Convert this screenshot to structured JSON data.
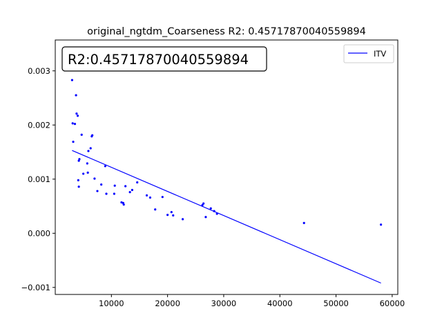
{
  "chart_data": {
    "type": "scatter",
    "title": "original_ngtdm_Coarseness R2: 0.45717870040559894",
    "annotation": "R2:0.45717870040559894",
    "xlabel": "",
    "ylabel": "",
    "xlim": [
      0,
      61000
    ],
    "ylim": [
      -0.00113,
      0.00357
    ],
    "x_ticks": [
      10000,
      20000,
      30000,
      40000,
      50000,
      60000
    ],
    "x_tick_labels": [
      "10000",
      "20000",
      "30000",
      "40000",
      "50000",
      "60000"
    ],
    "y_ticks": [
      -0.001,
      0.0,
      0.001,
      0.002,
      0.003
    ],
    "y_tick_labels": [
      "−0.001",
      "0.000",
      "0.001",
      "0.002",
      "0.003"
    ],
    "legend": {
      "placement": "top-right",
      "entries": [
        "ITV"
      ]
    },
    "grid": false,
    "colors": {
      "points": "#0000ff",
      "line": "#0000ff"
    },
    "series": [
      {
        "kind": "points",
        "points": [
          [
            3000,
            0.00283
          ],
          [
            3100,
            0.00203
          ],
          [
            3200,
            0.00169
          ],
          [
            3500,
            0.00202
          ],
          [
            3700,
            0.00255
          ],
          [
            3800,
            0.00221
          ],
          [
            4000,
            0.00217
          ],
          [
            4100,
            0.00098
          ],
          [
            4200,
            0.00086
          ],
          [
            4200,
            0.00134
          ],
          [
            4300,
            0.00137
          ],
          [
            4700,
            0.00182
          ],
          [
            5000,
            0.0011
          ],
          [
            5700,
            0.00129
          ],
          [
            5800,
            0.00112
          ],
          [
            5900,
            0.00152
          ],
          [
            6300,
            0.00157
          ],
          [
            6500,
            0.00179
          ],
          [
            6600,
            0.00181
          ],
          [
            7000,
            0.00101
          ],
          [
            7500,
            0.00078
          ],
          [
            8200,
            0.0009
          ],
          [
            8900,
            0.00124
          ],
          [
            9100,
            0.00073
          ],
          [
            10500,
            0.00073
          ],
          [
            10600,
            0.00088
          ],
          [
            11800,
            0.00057
          ],
          [
            12100,
            0.00056
          ],
          [
            12200,
            0.00053
          ],
          [
            12500,
            0.00087
          ],
          [
            13300,
            0.00076
          ],
          [
            13700,
            0.0008
          ],
          [
            14600,
            0.00094
          ],
          [
            16300,
            0.0007
          ],
          [
            16900,
            0.00066
          ],
          [
            17800,
            0.00044
          ],
          [
            19100,
            0.00067
          ],
          [
            20000,
            0.00034
          ],
          [
            20700,
            0.00039
          ],
          [
            21000,
            0.00033
          ],
          [
            22700,
            0.00026
          ],
          [
            26200,
            0.00052
          ],
          [
            26400,
            0.00055
          ],
          [
            26800,
            0.0003
          ],
          [
            27700,
            0.00046
          ],
          [
            28300,
            0.00041
          ],
          [
            28800,
            0.00036
          ],
          [
            44300,
            0.00019
          ],
          [
            58000,
            0.00016
          ]
        ]
      },
      {
        "kind": "line",
        "name": "ITV",
        "points": [
          [
            3000,
            0.00153
          ],
          [
            58000,
            -0.00092
          ]
        ]
      }
    ]
  }
}
